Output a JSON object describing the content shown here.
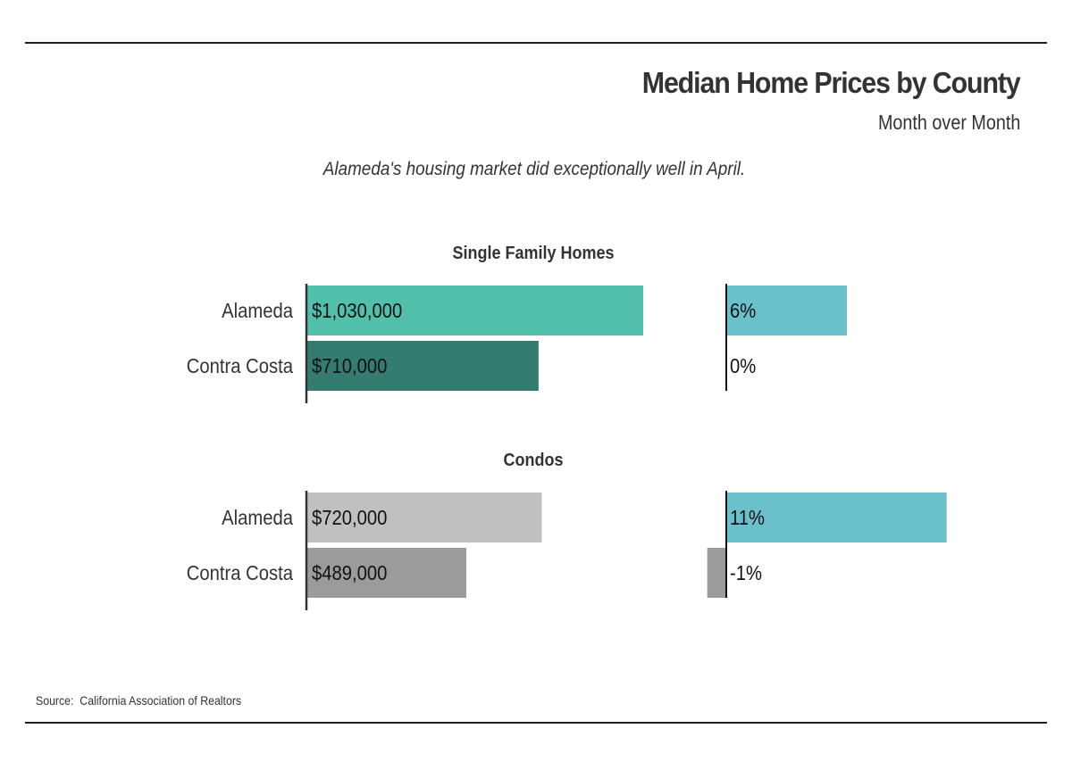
{
  "title": "Median Home Prices by County",
  "subtitle": "Month over Month",
  "annotation": "Alameda's housing market did exceptionally well in April.",
  "source": "Source:  California Association of Realtors",
  "chart_data": [
    {
      "type": "bar",
      "title": "Single Family Homes",
      "categories": [
        "Alameda",
        "Contra Costa"
      ],
      "series": [
        {
          "values": [
            1030000,
            710000
          ],
          "labels": [
            "$1,030,000",
            "$710,000"
          ],
          "colors": [
            "#52bfab",
            "#347c6f"
          ]
        },
        {
          "values": [
            6,
            0
          ],
          "labels": [
            "6%",
            "0%"
          ],
          "colors": [
            "#6ac1cb",
            "#6ac1cb"
          ]
        }
      ]
    },
    {
      "type": "bar",
      "title": "Condos",
      "categories": [
        "Alameda",
        "Contra Costa"
      ],
      "series": [
        {
          "values": [
            720000,
            489000
          ],
          "labels": [
            "$720,000",
            "$489,000"
          ],
          "colors": [
            "#c0c0c0",
            "#9b9b9b"
          ]
        },
        {
          "values": [
            11,
            -1
          ],
          "labels": [
            "11%",
            "-1%"
          ],
          "colors": [
            "#6ac1cb",
            "#9b9b9b"
          ]
        }
      ]
    }
  ]
}
